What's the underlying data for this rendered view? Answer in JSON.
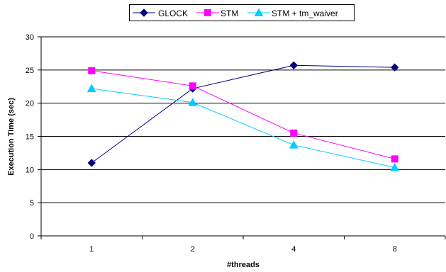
{
  "chart_data": {
    "type": "line",
    "title": "",
    "xlabel": "#threads",
    "ylabel": "Execution Time (sec)",
    "categories": [
      "1",
      "2",
      "4",
      "8"
    ],
    "ylim": [
      0,
      30
    ],
    "yticks": [
      "0",
      "5",
      "10",
      "15",
      "20",
      "25",
      "30"
    ],
    "grid": true,
    "legend_position": "top",
    "series": [
      {
        "name": "GLOCK",
        "values": [
          11.0,
          22.2,
          25.7,
          25.4
        ],
        "color": "#000080",
        "marker": "diamond"
      },
      {
        "name": "STM",
        "values": [
          24.9,
          22.6,
          15.5,
          11.6
        ],
        "color": "#ff00ff",
        "marker": "square"
      },
      {
        "name": "STM + tm_waiver",
        "values": [
          22.2,
          20.1,
          13.7,
          10.3
        ],
        "color": "#00ccff",
        "marker": "triangle"
      }
    ]
  }
}
